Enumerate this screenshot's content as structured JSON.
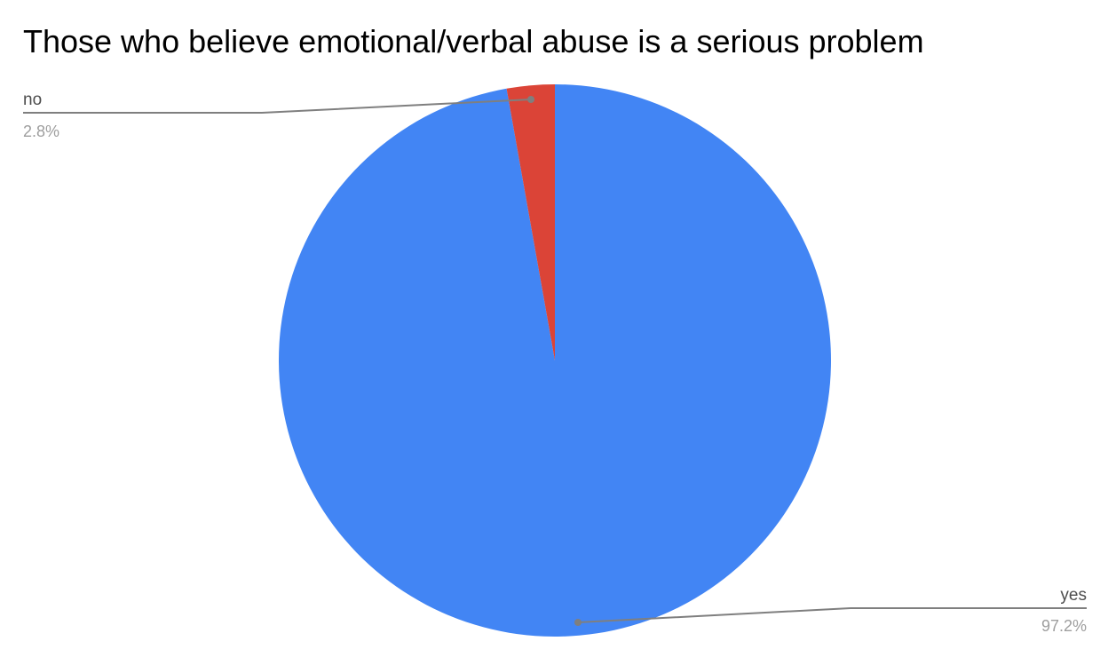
{
  "chart_data": {
    "type": "pie",
    "title": "Those who believe emotional/verbal abuse is a serious problem",
    "slices": [
      {
        "label": "yes",
        "value": 97.2,
        "display": "97.2%",
        "color": "#4285f4"
      },
      {
        "label": "no",
        "value": 2.8,
        "display": "2.8%",
        "color": "#db4437"
      }
    ],
    "label_colors": {
      "name": "#4d4d4d",
      "value": "#9e9e9e",
      "leader": "#7f7f7f"
    },
    "legend": "none"
  }
}
